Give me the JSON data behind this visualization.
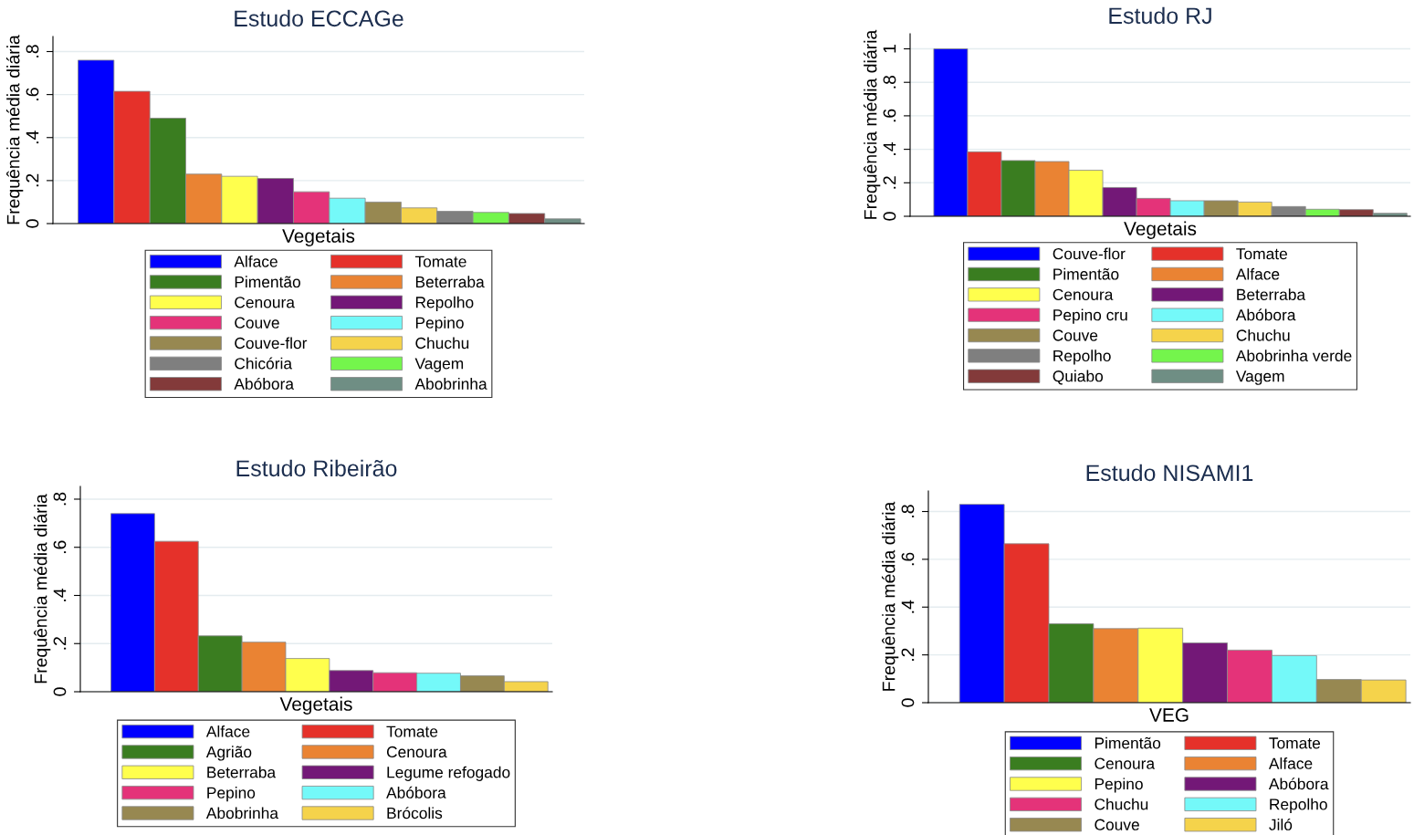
{
  "chart_data": [
    {
      "type": "bar",
      "title": "Estudo ECCAGe",
      "xlabel": "Vegetais",
      "ylabel": "Frequência média diária",
      "categories": [
        null
      ],
      "ylim": [
        0,
        0.87
      ],
      "yticks": [
        {
          "value": 0,
          "label": "0"
        },
        {
          "value": 0.2,
          "label": ".2"
        },
        {
          "value": 0.4,
          "label": ".4"
        },
        {
          "value": 0.6,
          "label": ".6"
        },
        {
          "value": 0.8,
          "label": ".8"
        }
      ],
      "grid": "y",
      "legend": "bottom",
      "series": [
        {
          "name": "Alface",
          "color": "#0000ff",
          "values": [
            0.76
          ]
        },
        {
          "name": "Tomate",
          "color": "#e5312a",
          "values": [
            0.615
          ]
        },
        {
          "name": "Pimentão",
          "color": "#3a7d20",
          "values": [
            0.49
          ]
        },
        {
          "name": "Beterraba",
          "color": "#ea8333",
          "values": [
            0.23
          ]
        },
        {
          "name": "Cenoura",
          "color": "#ffff4d",
          "values": [
            0.22
          ]
        },
        {
          "name": "Repolho",
          "color": "#731877",
          "values": [
            0.21
          ]
        },
        {
          "name": "Couve",
          "color": "#e43379",
          "values": [
            0.148
          ]
        },
        {
          "name": "Pepino",
          "color": "#74f9f9",
          "values": [
            0.118
          ]
        },
        {
          "name": "Couve-flor",
          "color": "#978851",
          "values": [
            0.1
          ]
        },
        {
          "name": "Chuchu",
          "color": "#f5d34b",
          "values": [
            0.073
          ]
        },
        {
          "name": "Chicória",
          "color": "#7f7f7f",
          "values": [
            0.057
          ]
        },
        {
          "name": "Vagem",
          "color": "#74f54c",
          "values": [
            0.052
          ]
        },
        {
          "name": "Abóbora",
          "color": "#833a3a",
          "values": [
            0.047
          ]
        },
        {
          "name": "Abobrinha",
          "color": "#6f8e84",
          "values": [
            0.022
          ]
        }
      ]
    },
    {
      "type": "bar",
      "title": "Estudo RJ",
      "xlabel": "Vegetais",
      "ylabel": "Frequência média diária",
      "categories": [
        null
      ],
      "ylim": [
        0,
        1.09
      ],
      "yticks": [
        {
          "value": 0,
          "label": "0"
        },
        {
          "value": 0.2,
          "label": ".2"
        },
        {
          "value": 0.4,
          "label": ".4"
        },
        {
          "value": 0.6,
          "label": ".6"
        },
        {
          "value": 0.8,
          "label": ".8"
        },
        {
          "value": 1,
          "label": "1"
        }
      ],
      "grid": "y",
      "legend": "bottom",
      "series": [
        {
          "name": "Couve-flor",
          "color": "#0000ff",
          "values": [
            1.0
          ]
        },
        {
          "name": "Tomate",
          "color": "#e5312a",
          "values": [
            0.385
          ]
        },
        {
          "name": "Pimentão",
          "color": "#3a7d20",
          "values": [
            0.333
          ]
        },
        {
          "name": "Alface",
          "color": "#ea8333",
          "values": [
            0.327
          ]
        },
        {
          "name": "Cenoura",
          "color": "#ffff4d",
          "values": [
            0.275
          ]
        },
        {
          "name": "Beterraba",
          "color": "#731877",
          "values": [
            0.172
          ]
        },
        {
          "name": "Pepino cru",
          "color": "#e43379",
          "values": [
            0.107
          ]
        },
        {
          "name": "Abóbora",
          "color": "#74f9f9",
          "values": [
            0.093
          ]
        },
        {
          "name": "Couve",
          "color": "#978851",
          "values": [
            0.093
          ]
        },
        {
          "name": "Chuchu",
          "color": "#f5d34b",
          "values": [
            0.085
          ]
        },
        {
          "name": "Repolho",
          "color": "#7f7f7f",
          "values": [
            0.058
          ]
        },
        {
          "name": "Abobrinha verde",
          "color": "#74f54c",
          "values": [
            0.042
          ]
        },
        {
          "name": "Quiabo",
          "color": "#833a3a",
          "values": [
            0.04
          ]
        },
        {
          "name": "Vagem",
          "color": "#6f8e84",
          "values": [
            0.018
          ]
        }
      ]
    },
    {
      "type": "bar",
      "title": "Estudo Ribeirão",
      "xlabel": "Vegetais",
      "ylabel": "Frequência média diária",
      "categories": [
        null
      ],
      "ylim": [
        0,
        0.853
      ],
      "yticks": [
        {
          "value": 0,
          "label": "0"
        },
        {
          "value": 0.2,
          "label": ".2"
        },
        {
          "value": 0.4,
          "label": ".4"
        },
        {
          "value": 0.6,
          "label": ".6"
        },
        {
          "value": 0.8,
          "label": ".8"
        }
      ],
      "grid": "y",
      "legend": "bottom",
      "series": [
        {
          "name": "Alface",
          "color": "#0000ff",
          "values": [
            0.74
          ]
        },
        {
          "name": "Tomate",
          "color": "#e5312a",
          "values": [
            0.625
          ]
        },
        {
          "name": "Agrião",
          "color": "#3a7d20",
          "values": [
            0.232
          ]
        },
        {
          "name": "Cenoura",
          "color": "#ea8333",
          "values": [
            0.206
          ]
        },
        {
          "name": "Beterraba",
          "color": "#ffff4d",
          "values": [
            0.138
          ]
        },
        {
          "name": "Legume refogado",
          "color": "#731877",
          "values": [
            0.088
          ]
        },
        {
          "name": "Pepino",
          "color": "#e43379",
          "values": [
            0.079
          ]
        },
        {
          "name": "Abóbora",
          "color": "#74f9f9",
          "values": [
            0.077
          ]
        },
        {
          "name": "Abobrinha",
          "color": "#978851",
          "values": [
            0.066
          ]
        },
        {
          "name": "Brócolis",
          "color": "#f5d34b",
          "values": [
            0.042
          ]
        }
      ]
    },
    {
      "type": "bar",
      "title": "Estudo NISAMI1",
      "xlabel": "VEG",
      "ylabel": "Frequência média diária",
      "categories": [
        null
      ],
      "ylim": [
        0,
        0.886
      ],
      "yticks": [
        {
          "value": 0,
          "label": "0"
        },
        {
          "value": 0.2,
          "label": ".2"
        },
        {
          "value": 0.4,
          "label": ".4"
        },
        {
          "value": 0.6,
          "label": ".6"
        },
        {
          "value": 0.8,
          "label": ".8"
        }
      ],
      "grid": "y",
      "legend": "bottom",
      "series": [
        {
          "name": "Pimentão",
          "color": "#0000ff",
          "values": [
            0.83
          ]
        },
        {
          "name": "Tomate",
          "color": "#e5312a",
          "values": [
            0.665
          ]
        },
        {
          "name": "Cenoura",
          "color": "#3a7d20",
          "values": [
            0.33
          ]
        },
        {
          "name": "Alface",
          "color": "#ea8333",
          "values": [
            0.31
          ]
        },
        {
          "name": "Pepino",
          "color": "#ffff4d",
          "values": [
            0.312
          ]
        },
        {
          "name": "Abóbora",
          "color": "#731877",
          "values": [
            0.25
          ]
        },
        {
          "name": "Chuchu",
          "color": "#e43379",
          "values": [
            0.22
          ]
        },
        {
          "name": "Repolho",
          "color": "#74f9f9",
          "values": [
            0.197
          ]
        },
        {
          "name": "Couve",
          "color": "#978851",
          "values": [
            0.097
          ]
        },
        {
          "name": "Jiló",
          "color": "#f5d34b",
          "values": [
            0.095
          ]
        }
      ]
    }
  ]
}
